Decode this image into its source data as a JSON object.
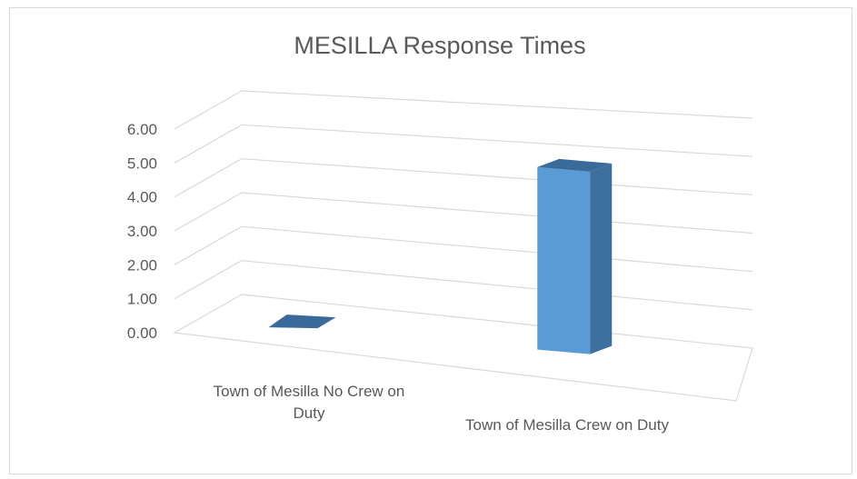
{
  "chart_data": {
    "type": "bar",
    "title": "MESILLA Response Times",
    "categories": [
      "Town of Mesilla No Crew on Duty",
      "Town of Mesilla Crew on Duty"
    ],
    "category_label_lines": [
      [
        "Town of Mesilla No Crew on",
        "Duty"
      ],
      [
        "Town of Mesilla Crew on Duty"
      ]
    ],
    "values": [
      0.0,
      5.6
    ],
    "ylim": [
      0,
      6
    ],
    "yticks": [
      "0.00",
      "1.00",
      "2.00",
      "3.00",
      "4.00",
      "5.00",
      "6.00"
    ],
    "grid": true,
    "legend": "none",
    "style": "3d-column",
    "colors": {
      "bar_front": "#5b9bd5",
      "bar_side": "#3d6f9f",
      "bar_top": "#3a6a99",
      "grid": "#d9d9d9",
      "text": "#595959"
    }
  }
}
